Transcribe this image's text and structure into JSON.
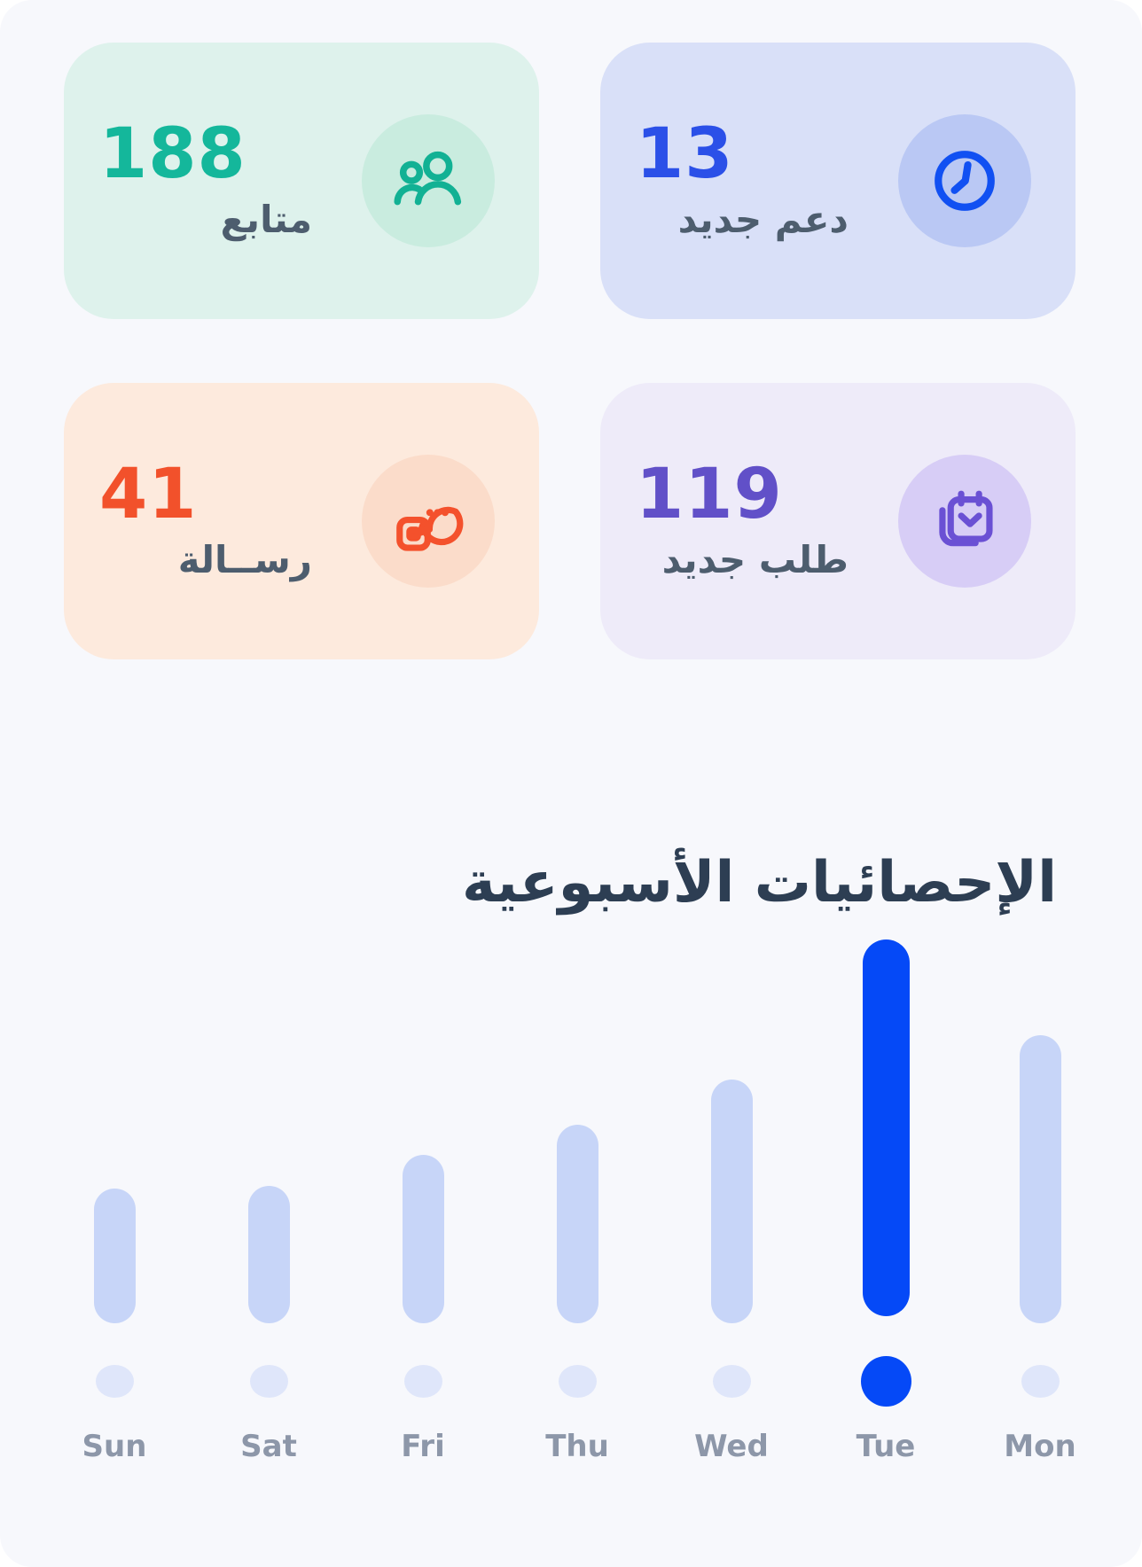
{
  "stats": {
    "cards": [
      {
        "id": "followers",
        "value": "188",
        "label": "متابع",
        "icon": "users-icon",
        "colors": {
          "bg": "#def2ec",
          "value": "#14b79b",
          "circle_bg": "#c9ecdf",
          "icon": "#12b194"
        }
      },
      {
        "id": "new-support",
        "value": "13",
        "label": "دعم جديد",
        "icon": "clock-icon",
        "colors": {
          "bg": "#d9e0f8",
          "value": "#2b50e8",
          "circle_bg": "#bac8f4",
          "icon": "#1150f2"
        }
      },
      {
        "id": "messages",
        "value": "41",
        "label": "رســالة",
        "icon": "chat-message-icon",
        "colors": {
          "bg": "#fdeadd",
          "value": "#f2512b",
          "circle_bg": "#fbdcca",
          "icon": "#f4512c"
        }
      },
      {
        "id": "new-orders",
        "value": "119",
        "label": "طلب جديد",
        "icon": "calendar-stack-icon",
        "colors": {
          "bg": "#eeebf9",
          "value": "#6150c8",
          "circle_bg": "#d7cdf6",
          "icon": "#6a50d4"
        }
      }
    ],
    "label_color": "#4d5d6e"
  },
  "weekly": {
    "title": "الإحصائيات الأسبوعية",
    "title_color": "#2d3e53",
    "chart_data": {
      "type": "bar",
      "categories": [
        "Sun",
        "Sat",
        "Fri",
        "Thu",
        "Wed",
        "Tue",
        "Mon"
      ],
      "values": [
        152,
        155,
        190,
        224,
        275,
        425,
        325
      ],
      "value_unit": "relative-bar-height-px",
      "highlight_index": 5,
      "highlight_category": "Tue",
      "bar_color": "#c7d5f8",
      "highlight_color": "#0549f7",
      "dot_color": "#dfe6fa",
      "axis_label_color": "#8d97a9",
      "title": "الإحصائيات الأسبوعية",
      "xlabel": "",
      "ylabel": "",
      "grid": false,
      "legend": false
    }
  }
}
